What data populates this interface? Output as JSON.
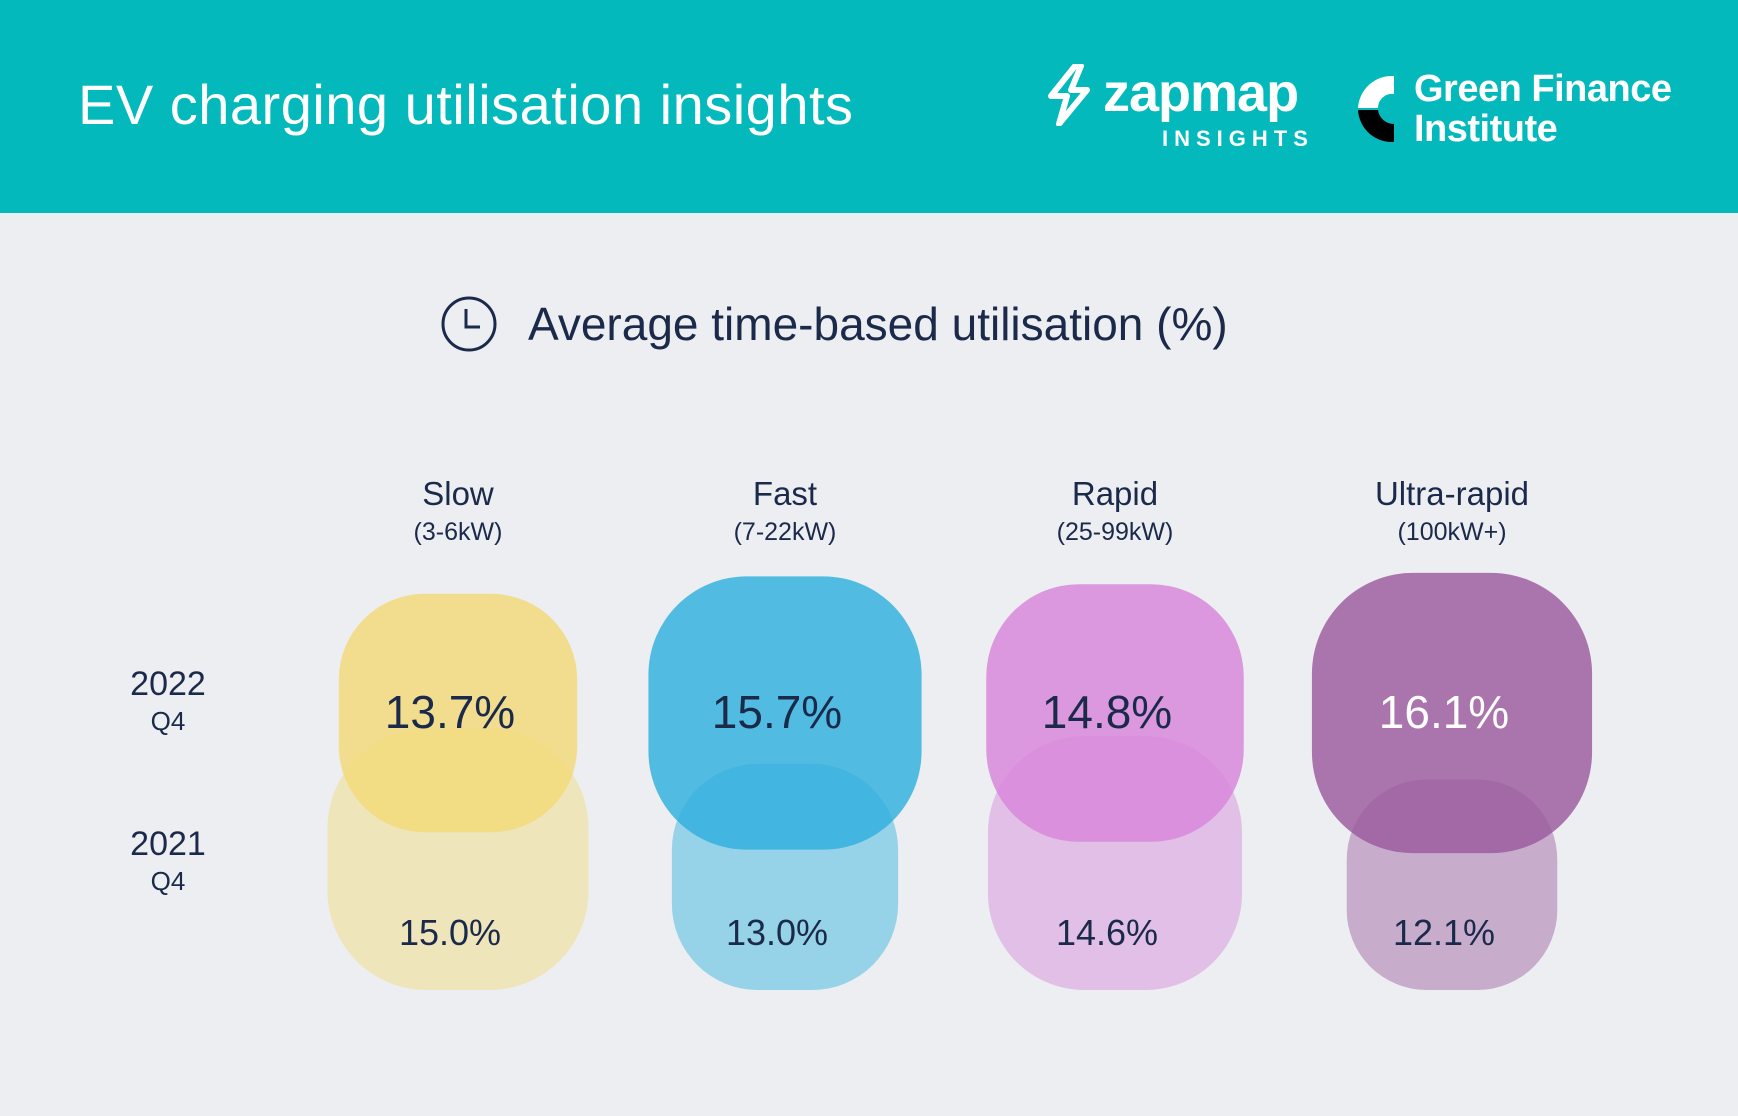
{
  "header": {
    "title": "EV charging utilisation insights",
    "brand1_name": "zapmap",
    "brand1_sub": "INSIGHTS",
    "brand2_line1": "Green Finance",
    "brand2_line2": "Institute",
    "background_color": "#03b9bb"
  },
  "chart_data": {
    "type": "bar",
    "title": "Average time-based utilisation (%)",
    "title_icon": "clock-icon",
    "unit": "%",
    "periods": [
      {
        "label": "2022",
        "sub": "Q4"
      },
      {
        "label": "2021",
        "sub": "Q4"
      }
    ],
    "categories": [
      {
        "name": "Slow",
        "range": "(3-6kW)",
        "value_2022": 13.7,
        "value_2021": 15.0,
        "color": "#f3d978"
      },
      {
        "name": "Fast",
        "range": "(7-22kW)",
        "value_2022": 15.7,
        "value_2021": 13.0,
        "color": "#2fb0de"
      },
      {
        "name": "Rapid",
        "range": "(25-99kW)",
        "value_2022": 14.8,
        "value_2021": 14.6,
        "color": "#d885d9"
      },
      {
        "name": "Ultra-rapid",
        "range": "(100kW+)",
        "value_2022": 16.1,
        "value_2021": 12.1,
        "color": "#9b5a9e"
      }
    ],
    "labels_2022": [
      "13.7%",
      "15.7%",
      "14.8%",
      "16.1%"
    ],
    "labels_2021": [
      "15.0%",
      "13.0%",
      "14.6%",
      "12.1%"
    ],
    "label_2022_colors": [
      "#1b2a4a",
      "#1b2a4a",
      "#1b2a4a",
      "#ffffff"
    ]
  }
}
